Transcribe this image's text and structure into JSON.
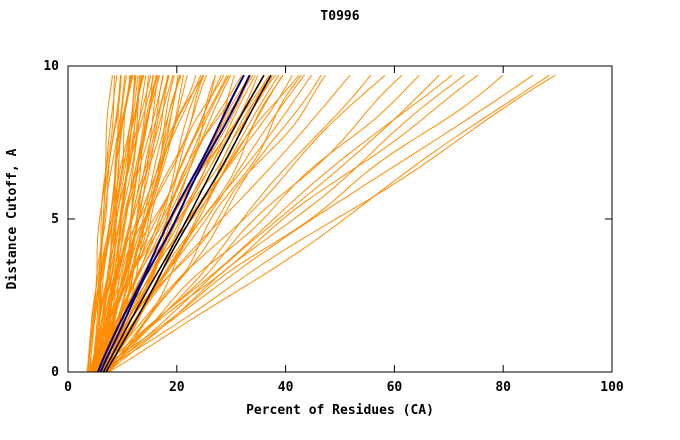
{
  "chart_data": {
    "type": "line",
    "title": "T0996",
    "xlabel": "Percent of Residues (CA)",
    "ylabel": "Distance Cutoff, A",
    "xlim": [
      0,
      100
    ],
    "ylim": [
      0,
      10
    ],
    "x_ticks": [
      0,
      20,
      40,
      60,
      80,
      100
    ],
    "y_ticks": [
      0,
      5,
      10
    ],
    "grid": false,
    "legend": "none",
    "colors": {
      "model_curves": "#ff8c00",
      "highlight_black": "#000000",
      "highlight_navy": "#000080",
      "axis": "#000000",
      "background": "#ffffff"
    },
    "y_top_of_curves": 9.7,
    "curve_format": "[x_at_y0, x_at_ytop, bend_exponent, wobble_amplitude]",
    "orange_curves": [
      [
        3.5,
        8,
        0.9,
        0.3
      ],
      [
        4,
        9,
        1.1,
        0.4
      ],
      [
        4.2,
        10,
        0.8,
        0.5
      ],
      [
        3.8,
        10.5,
        1.2,
        0.3
      ],
      [
        4.5,
        11,
        1.0,
        0.6
      ],
      [
        5,
        11.5,
        0.9,
        0.4
      ],
      [
        4.1,
        12,
        1.3,
        0.5
      ],
      [
        4.8,
        12.5,
        0.7,
        0.3
      ],
      [
        5.2,
        13,
        1.1,
        0.6
      ],
      [
        4.3,
        13.5,
        0.9,
        0.4
      ],
      [
        5.5,
        14,
        1.2,
        0.5
      ],
      [
        4.6,
        14.5,
        0.8,
        0.3
      ],
      [
        5.8,
        15,
        1.0,
        0.6
      ],
      [
        4.9,
        15.5,
        1.3,
        0.4
      ],
      [
        6,
        16,
        0.9,
        0.5
      ],
      [
        5.1,
        16.5,
        1.1,
        0.3
      ],
      [
        6.2,
        17,
        0.8,
        0.6
      ],
      [
        5.3,
        17.5,
        1.2,
        0.4
      ],
      [
        6.5,
        18,
        1.0,
        0.5
      ],
      [
        5.6,
        18.5,
        0.9,
        0.3
      ],
      [
        6.8,
        19,
        1.1,
        0.6
      ],
      [
        5.9,
        19.5,
        1.3,
        0.4
      ],
      [
        7,
        20,
        0.8,
        0.5
      ],
      [
        6.1,
        20.5,
        1.0,
        0.3
      ],
      [
        7.2,
        21,
        1.2,
        0.6
      ],
      [
        6.3,
        21.5,
        0.9,
        0.4
      ],
      [
        7.5,
        22,
        1.1,
        0.5
      ],
      [
        3.6,
        9.5,
        1.0,
        0.4
      ],
      [
        4.4,
        11.8,
        1.15,
        0.5
      ],
      [
        5.4,
        13.8,
        0.85,
        0.4
      ],
      [
        6.6,
        15.8,
        1.05,
        0.5
      ],
      [
        4.7,
        12.8,
        0.95,
        0.3
      ],
      [
        5.7,
        14.8,
        1.25,
        0.6
      ],
      [
        3.9,
        10.8,
        0.75,
        0.4
      ],
      [
        6.9,
        17.8,
        1.1,
        0.5
      ],
      [
        4.05,
        9.8,
        1.2,
        0.3
      ],
      [
        5.05,
        12.2,
        0.9,
        0.5
      ],
      [
        6.05,
        16.2,
        1.0,
        0.4
      ],
      [
        7.05,
        19.8,
        0.85,
        0.6
      ],
      [
        3.7,
        8.8,
        1.05,
        0.4
      ],
      [
        4.55,
        11.2,
        1.15,
        0.5
      ],
      [
        5.45,
        13.2,
        0.8,
        0.3
      ],
      [
        6.45,
        16.8,
        1.2,
        0.5
      ],
      [
        7.3,
        20.8,
        0.95,
        0.4
      ],
      [
        4.95,
        12.4,
        1.08,
        0.5
      ],
      [
        4,
        23,
        1.0,
        0.8
      ],
      [
        5,
        24,
        1.2,
        0.7
      ],
      [
        6,
        25,
        0.9,
        0.9
      ],
      [
        4.5,
        26,
        1.1,
        0.8
      ],
      [
        5.5,
        27,
        0.85,
        0.7
      ],
      [
        6.5,
        28,
        1.25,
        0.9
      ],
      [
        4.2,
        29,
        1.0,
        0.8
      ],
      [
        5.2,
        30,
        1.15,
        0.7
      ],
      [
        6.2,
        31,
        0.9,
        0.9
      ],
      [
        4.8,
        32,
        1.2,
        0.8
      ],
      [
        5.8,
        33,
        0.95,
        0.7
      ],
      [
        6.8,
        34,
        1.1,
        0.9
      ],
      [
        4.4,
        35,
        1.0,
        0.8
      ],
      [
        5.4,
        36,
        1.2,
        0.7
      ],
      [
        6.4,
        37,
        0.9,
        0.9
      ],
      [
        5.0,
        38,
        1.1,
        0.8
      ],
      [
        6.0,
        39,
        0.95,
        0.7
      ],
      [
        7.0,
        40,
        1.15,
        0.9
      ],
      [
        5.3,
        41,
        1.0,
        0.8
      ],
      [
        6.3,
        42,
        1.2,
        0.7
      ],
      [
        7.3,
        43,
        0.9,
        0.9
      ],
      [
        5.6,
        44,
        1.05,
        0.8
      ],
      [
        6.6,
        45,
        1.1,
        0.7
      ],
      [
        7.6,
        46,
        0.95,
        0.9
      ],
      [
        4.6,
        24.5,
        1.3,
        0.8
      ],
      [
        5.9,
        27.5,
        0.8,
        0.7
      ],
      [
        6.9,
        30.5,
        1.2,
        0.9
      ],
      [
        4.9,
        33.5,
        1.0,
        0.8
      ],
      [
        6.1,
        36.5,
        1.15,
        0.7
      ],
      [
        7.1,
        39.5,
        0.9,
        0.9
      ],
      [
        5.15,
        25.5,
        1.05,
        0.8
      ],
      [
        6.15,
        28.5,
        1.25,
        0.7
      ],
      [
        7.15,
        34.5,
        0.95,
        0.9
      ],
      [
        5.65,
        31.5,
        1.1,
        0.8
      ],
      [
        6.65,
        37.5,
        1.0,
        0.7
      ],
      [
        5,
        48,
        1.0,
        1.0
      ],
      [
        6,
        52,
        1.1,
        0.9
      ],
      [
        7,
        55,
        0.95,
        1.0
      ],
      [
        5.5,
        58,
        1.05,
        0.9
      ],
      [
        6.5,
        62,
        1.0,
        1.0
      ],
      [
        7.5,
        65,
        1.1,
        0.9
      ],
      [
        6.2,
        68,
        0.95,
        1.0
      ],
      [
        5.8,
        70,
        1.05,
        0.9
      ],
      [
        7.2,
        73,
        1.0,
        1.0
      ],
      [
        6.8,
        76,
        1.1,
        0.9
      ],
      [
        5.2,
        80,
        1.0,
        1.0
      ],
      [
        6.4,
        85,
        1.05,
        0.9
      ],
      [
        7.4,
        88,
        0.95,
        1.0
      ],
      [
        6.0,
        90,
        1.0,
        0.9
      ]
    ],
    "navy_curves": [
      [
        5.5,
        32.5,
        1.05,
        0.25
      ],
      [
        6.0,
        33.5,
        1.05,
        0.25
      ]
    ],
    "black_curves": [
      [
        6.5,
        36,
        1.0,
        0.25
      ],
      [
        7.0,
        37.5,
        1.0,
        0.25
      ]
    ]
  }
}
